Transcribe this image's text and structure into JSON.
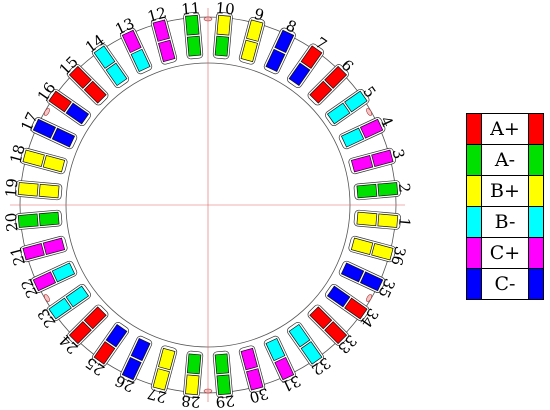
{
  "slot_numbers": [
    "1",
    "2",
    "3",
    "4",
    "5",
    "6",
    "7",
    "8",
    "9",
    "10",
    "11",
    "12",
    "13",
    "14",
    "15",
    "16",
    "17",
    "18",
    "19",
    "20",
    "21",
    "22",
    "23",
    "24",
    "25",
    "26",
    "27",
    "28",
    "29",
    "30",
    "31",
    "32",
    "33",
    "34",
    "35",
    "36"
  ],
  "phase_colors": {
    "A+": "#ff0000",
    "A-": "#00e000",
    "B+": "#ffff00",
    "B-": "#00ffff",
    "C+": "#ff00ff",
    "C-": "#0000ff"
  },
  "slots": [
    {
      "slot": "1",
      "top": "B+",
      "bottom": "B+"
    },
    {
      "slot": "2",
      "top": "A-",
      "bottom": "A-"
    },
    {
      "slot": "3",
      "top": "C+",
      "bottom": "C+"
    },
    {
      "slot": "4",
      "top": "C+",
      "bottom": "B-"
    },
    {
      "slot": "5",
      "top": "B-",
      "bottom": "B-"
    },
    {
      "slot": "6",
      "top": "A+",
      "bottom": "A+"
    },
    {
      "slot": "7",
      "top": "A+",
      "bottom": "C-"
    },
    {
      "slot": "8",
      "top": "C-",
      "bottom": "C-"
    },
    {
      "slot": "9",
      "top": "B+",
      "bottom": "B+"
    },
    {
      "slot": "10",
      "top": "B+",
      "bottom": "A-"
    },
    {
      "slot": "11",
      "top": "A-",
      "bottom": "A-"
    },
    {
      "slot": "12",
      "top": "C+",
      "bottom": "C+"
    },
    {
      "slot": "13",
      "top": "C+",
      "bottom": "B-"
    },
    {
      "slot": "14",
      "top": "B-",
      "bottom": "B-"
    },
    {
      "slot": "15",
      "top": "A+",
      "bottom": "A+"
    },
    {
      "slot": "16",
      "top": "A+",
      "bottom": "C-"
    },
    {
      "slot": "17",
      "top": "C-",
      "bottom": "C-"
    },
    {
      "slot": "18",
      "top": "B+",
      "bottom": "B+"
    },
    {
      "slot": "19",
      "top": "B+",
      "bottom": "B+"
    },
    {
      "slot": "20",
      "top": "A-",
      "bottom": "A-"
    },
    {
      "slot": "21",
      "top": "C+",
      "bottom": "C+"
    },
    {
      "slot": "22",
      "top": "C+",
      "bottom": "B-"
    },
    {
      "slot": "23",
      "top": "B-",
      "bottom": "B-"
    },
    {
      "slot": "24",
      "top": "A+",
      "bottom": "A+"
    },
    {
      "slot": "25",
      "top": "A+",
      "bottom": "C-"
    },
    {
      "slot": "26",
      "top": "C-",
      "bottom": "C-"
    },
    {
      "slot": "27",
      "top": "B+",
      "bottom": "B+"
    },
    {
      "slot": "28",
      "top": "B+",
      "bottom": "A-"
    },
    {
      "slot": "29",
      "top": "A-",
      "bottom": "A-"
    },
    {
      "slot": "30",
      "top": "C+",
      "bottom": "C+"
    },
    {
      "slot": "31",
      "top": "C+",
      "bottom": "B-"
    },
    {
      "slot": "32",
      "top": "B-",
      "bottom": "B-"
    },
    {
      "slot": "33",
      "top": "A+",
      "bottom": "A+"
    },
    {
      "slot": "34",
      "top": "A+",
      "bottom": "C-"
    },
    {
      "slot": "35",
      "top": "C-",
      "bottom": "C-"
    },
    {
      "slot": "36",
      "top": "B+",
      "bottom": "B+"
    }
  ],
  "legend": [
    {
      "label": "A+",
      "color": "#ff0000"
    },
    {
      "label": "A-",
      "color": "#00e000"
    },
    {
      "label": "B+",
      "color": "#ffff00"
    },
    {
      "label": "B-",
      "color": "#00ffff"
    },
    {
      "label": "C+",
      "color": "#ff00ff"
    },
    {
      "label": "C-",
      "color": "#0000ff"
    }
  ]
}
